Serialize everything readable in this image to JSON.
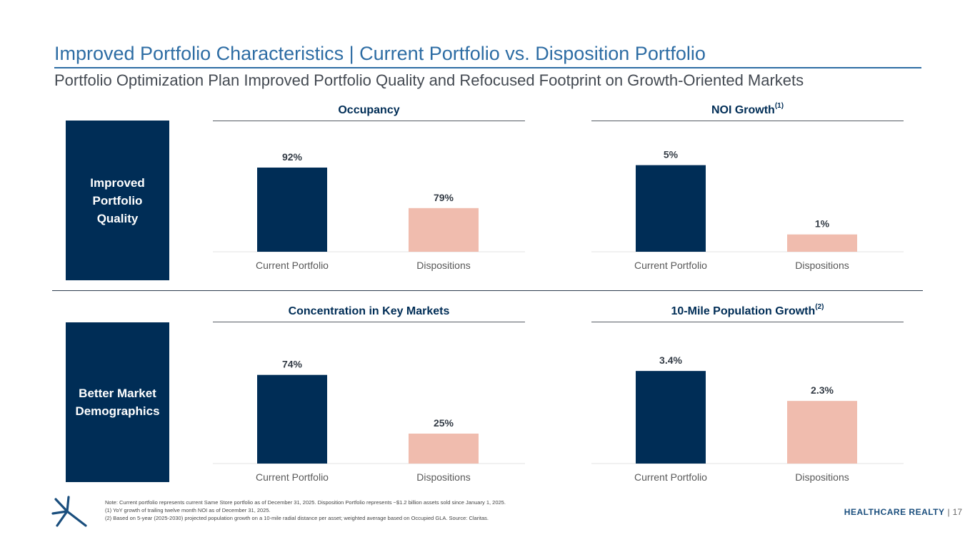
{
  "header": {
    "title": "Improved Portfolio Characteristics | Current Portfolio vs. Disposition Portfolio",
    "subtitle": "Portfolio Optimization Plan Improved Portfolio Quality and Refocused Footprint on Growth-Oriented Markets"
  },
  "sections": {
    "quality": "Improved\nPortfolio\nQuality",
    "demographics": "Better Market\nDemographics"
  },
  "colors": {
    "navy": "#002d56",
    "salmon": "#f0bcae",
    "title_blue": "#2e6da4"
  },
  "chart_data": [
    {
      "type": "bar",
      "title": "Occupancy",
      "title_sup": "",
      "categories": [
        "Current Portfolio",
        "Dispositions"
      ],
      "values": [
        92,
        79
      ],
      "labels": [
        "92%",
        "79%"
      ],
      "ylim": [
        65,
        100
      ],
      "colors": [
        "#002d56",
        "#f0bcae"
      ],
      "xlabel": "",
      "ylabel": ""
    },
    {
      "type": "bar",
      "title": "NOI Growth",
      "title_sup": "(1)",
      "categories": [
        "Current Portfolio",
        "Dispositions"
      ],
      "values": [
        5,
        1
      ],
      "labels": [
        "5%",
        "1%"
      ],
      "ylim": [
        0,
        6.3
      ],
      "colors": [
        "#002d56",
        "#f0bcae"
      ],
      "xlabel": "",
      "ylabel": ""
    },
    {
      "type": "bar",
      "title": "Concentration in Key Markets",
      "title_sup": "",
      "categories": [
        "Current Portfolio",
        "Dispositions"
      ],
      "values": [
        74,
        25
      ],
      "labels": [
        "74%",
        "25%"
      ],
      "ylim": [
        0,
        100
      ],
      "colors": [
        "#002d56",
        "#f0bcae"
      ],
      "xlabel": "",
      "ylabel": ""
    },
    {
      "type": "bar",
      "title": "10-Mile Population Growth",
      "title_sup": "(2)",
      "categories": [
        "Current Portfolio",
        "Dispositions"
      ],
      "values": [
        3.4,
        2.3
      ],
      "labels": [
        "3.4%",
        "2.3%"
      ],
      "ylim": [
        0,
        4.4
      ],
      "colors": [
        "#002d56",
        "#f0bcae"
      ],
      "xlabel": "",
      "ylabel": ""
    }
  ],
  "notes": [
    "Note: Current portfolio represents current Same Store portfolio as of December 31, 2025. Disposition Portfolio represents ~$1.2 billion assets sold since January 1, 2025.",
    "(1)    YoY growth of trailing twelve month NOI as of December 31, 2025.",
    "(2)    Based on 5-year (2025-2030) projected population growth on a 10-mile radial distance per asset; weighted average based on Occupied GLA. Source: Claritas."
  ],
  "footer": {
    "brand": "HEALTHCARE REALTY",
    "separator": "|",
    "page": "17",
    "logo": "star-burst-logo-icon"
  }
}
